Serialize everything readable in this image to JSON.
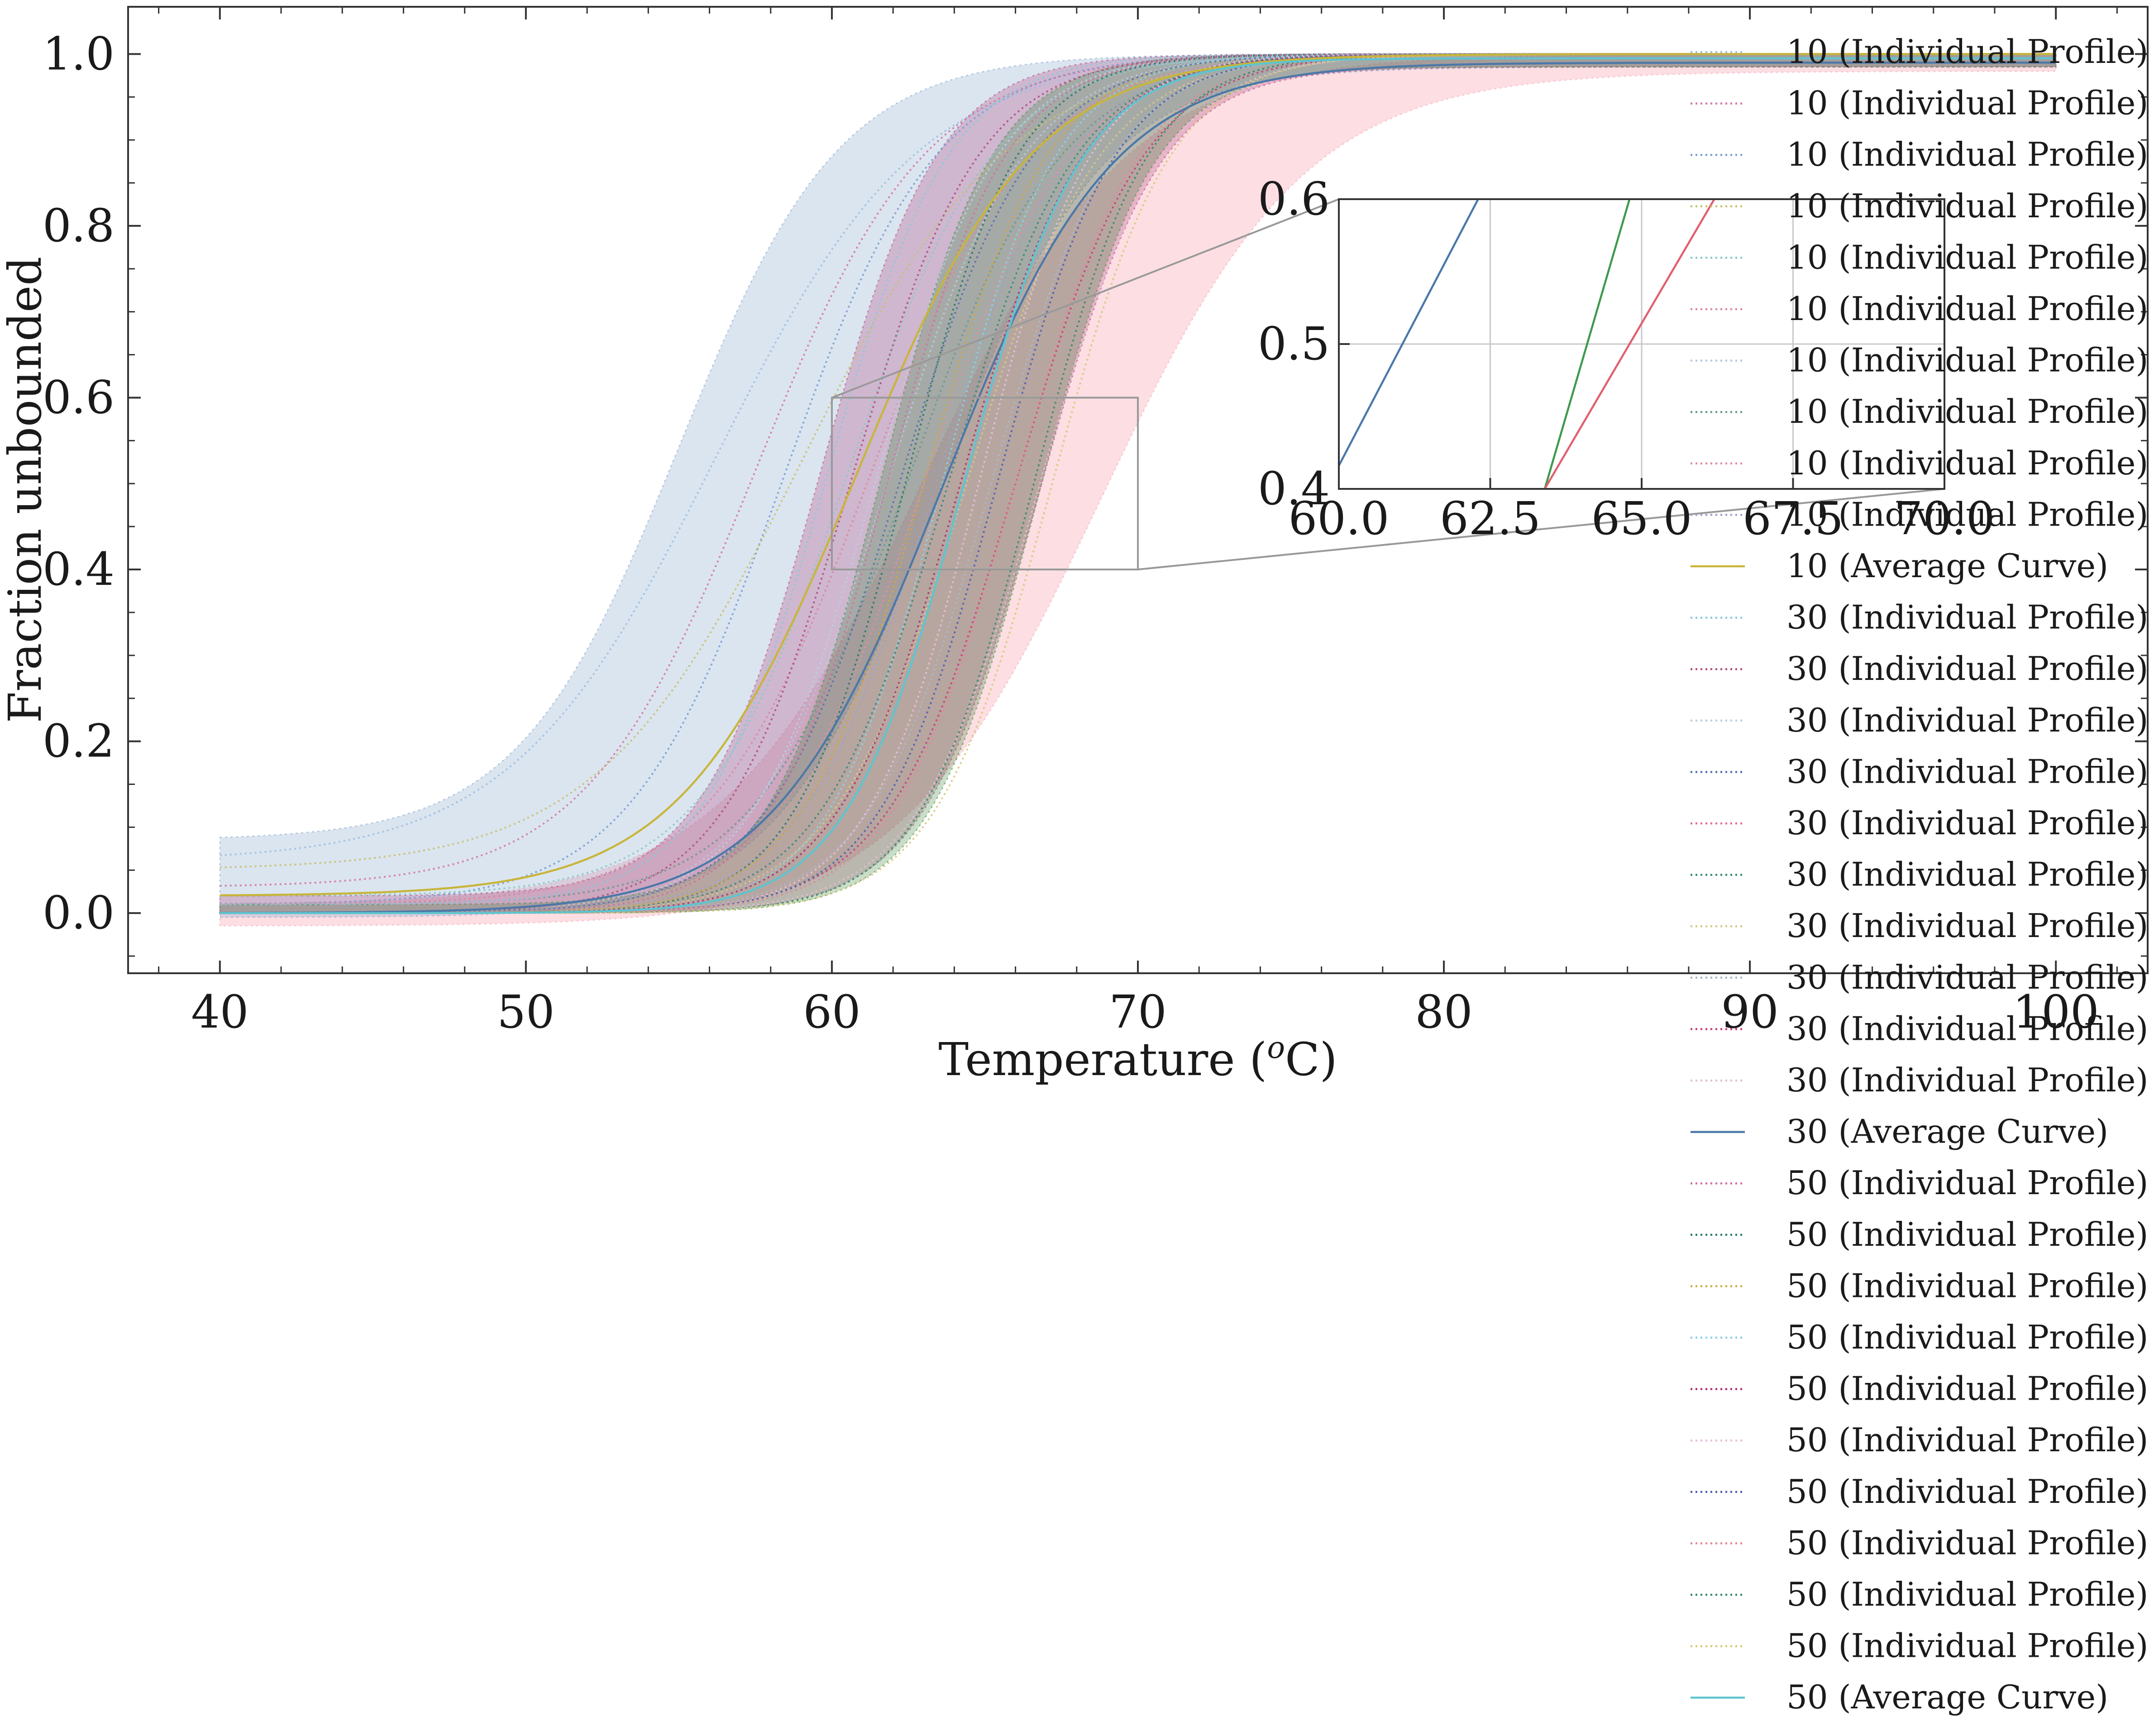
{
  "chart_data": {
    "type": "line",
    "xlabel": "Temperature (",
    "xlabel_sup": "o",
    "xlabel_suffix": "C)",
    "ylabel": "Fraction unbounded",
    "xlim": [
      37,
      103
    ],
    "ylim": [
      -0.07,
      1.055
    ],
    "xticks": [
      40,
      50,
      60,
      70,
      80,
      90,
      100
    ],
    "yticks": [
      0.0,
      0.2,
      0.4,
      0.6,
      0.8,
      1.0
    ],
    "xtick_labels": [
      "40",
      "50",
      "60",
      "70",
      "80",
      "90",
      "100"
    ],
    "ytick_labels": [
      "0.0",
      "0.2",
      "0.4",
      "0.6",
      "0.8",
      "1.0"
    ],
    "groups": [
      {
        "name": "10",
        "color": "#c8b53a",
        "band_color": "#7fa2c8",
        "band_min_tm": 55.0,
        "band_max_tm": 63.5,
        "band_k": 0.38,
        "band_lower_base": -0.005,
        "band_upper_base": 0.085,
        "average": {
          "label": "10 (Average Curve)",
          "tm": 60.8,
          "k": 0.35,
          "base": 0.02,
          "top": 1.0
        },
        "individual_label": "10 (Individual Profile)",
        "profiles": [
          {
            "tm": 56.2,
            "k": 0.3,
            "base": 0.06,
            "color": "#9fc0e0"
          },
          {
            "tm": 57.5,
            "k": 0.36,
            "base": 0.03,
            "color": "#d37aa6"
          },
          {
            "tm": 58.4,
            "k": 0.4,
            "base": 0.01,
            "color": "#7aa0d0"
          },
          {
            "tm": 59.0,
            "k": 0.3,
            "base": 0.05,
            "color": "#c8c070"
          },
          {
            "tm": 60.5,
            "k": 0.42,
            "base": 0.02,
            "color": "#8cc8c8"
          },
          {
            "tm": 61.2,
            "k": 0.38,
            "base": 0.01,
            "color": "#d88aa0"
          },
          {
            "tm": 61.8,
            "k": 0.45,
            "base": 0.0,
            "color": "#b8c8e0"
          },
          {
            "tm": 62.5,
            "k": 0.4,
            "base": 0.01,
            "color": "#6a9a8a"
          },
          {
            "tm": 63.0,
            "k": 0.42,
            "base": 0.0,
            "color": "#e090a0"
          },
          {
            "tm": 63.4,
            "k": 0.46,
            "base": 0.0,
            "color": "#a0a0c8"
          }
        ]
      },
      {
        "name": "30",
        "color": "#4a78a8",
        "band_color": "#b0417a",
        "band_min_tm": 59.6,
        "band_max_tm": 66.8,
        "band_k": 0.52,
        "band_lower_base": 0.0,
        "band_upper_base": 0.02,
        "average": {
          "label": "30 (Average Curve)",
          "tm": 63.6,
          "k": 0.36,
          "base": 0.0,
          "top": 0.99
        },
        "individual_label": "30 (Individual Profile)",
        "profiles": [
          {
            "tm": 59.8,
            "k": 0.5,
            "base": 0.01,
            "color": "#8cc8d8"
          },
          {
            "tm": 60.6,
            "k": 0.48,
            "base": 0.0,
            "color": "#b05080"
          },
          {
            "tm": 61.4,
            "k": 0.5,
            "base": 0.0,
            "color": "#b8d0e0"
          },
          {
            "tm": 62.2,
            "k": 0.46,
            "base": 0.0,
            "color": "#5a70b0"
          },
          {
            "tm": 63.0,
            "k": 0.5,
            "base": 0.0,
            "color": "#e07090"
          },
          {
            "tm": 63.8,
            "k": 0.48,
            "base": 0.0,
            "color": "#3a8a7a"
          },
          {
            "tm": 64.4,
            "k": 0.46,
            "base": 0.0,
            "color": "#d8c888"
          },
          {
            "tm": 65.2,
            "k": 0.5,
            "base": 0.0,
            "color": "#a8b8c8"
          },
          {
            "tm": 66.0,
            "k": 0.48,
            "base": 0.0,
            "color": "#c8407a"
          },
          {
            "tm": 66.8,
            "k": 0.5,
            "base": 0.0,
            "color": "#e0c0d0"
          }
        ]
      },
      {
        "name": "50",
        "color": "#5ec4d0",
        "band_color": "#3d8a3d",
        "band_min_tm": 61.6,
        "band_max_tm": 66.8,
        "band_k": 0.55,
        "band_lower_base": 0.0,
        "band_upper_base": 0.01,
        "average": {
          "label": "50 (Average Curve)",
          "tm": 64.3,
          "k": 0.52,
          "base": 0.0,
          "top": 0.995
        },
        "individual_label": "50 (Individual Profile)",
        "profiles": [
          {
            "tm": 61.8,
            "k": 0.52,
            "base": 0.0,
            "color": "#d070a0"
          },
          {
            "tm": 62.4,
            "k": 0.55,
            "base": 0.0,
            "color": "#2a7a6a"
          },
          {
            "tm": 63.0,
            "k": 0.5,
            "base": 0.0,
            "color": "#c8b040"
          },
          {
            "tm": 63.6,
            "k": 0.54,
            "base": 0.0,
            "color": "#8cd0e8"
          },
          {
            "tm": 64.2,
            "k": 0.5,
            "base": 0.0,
            "color": "#b03070"
          },
          {
            "tm": 64.8,
            "k": 0.55,
            "base": 0.0,
            "color": "#e8c0d8"
          },
          {
            "tm": 65.4,
            "k": 0.52,
            "base": 0.0,
            "color": "#5060b0"
          },
          {
            "tm": 66.0,
            "k": 0.5,
            "base": 0.0,
            "color": "#e08898"
          },
          {
            "tm": 66.6,
            "k": 0.54,
            "base": 0.0,
            "color": "#3a8a6a"
          },
          {
            "tm": 67.2,
            "k": 0.52,
            "base": 0.0,
            "color": "#d8c878"
          }
        ]
      }
    ],
    "extra_band": {
      "color": "#f5a0b0",
      "lower_tm": 68.8,
      "upper_tm": 63.0,
      "k": 0.3,
      "lower_base": -0.015,
      "upper_base": 0.01,
      "top_lower": 0.98
    },
    "inset": {
      "xlim": [
        60.0,
        70.0
      ],
      "ylim": [
        0.4,
        0.6
      ],
      "xticks": [
        60.0,
        62.5,
        65.0,
        67.5,
        70.0
      ],
      "yticks": [
        0.4,
        0.5,
        0.6
      ],
      "xtick_labels": [
        "60.0",
        "62.5",
        "65.0",
        "67.5",
        "70.0"
      ],
      "ytick_labels": [
        "0.4",
        "0.5",
        "0.6"
      ],
      "grid": true,
      "lines": [
        {
          "color": "#4a78a8",
          "x": [
            59.8,
            62.3
          ]
        },
        {
          "color": "#3d9a4d",
          "x": [
            63.4,
            64.8
          ]
        },
        {
          "color": "#e06070",
          "x": [
            63.4,
            66.2
          ]
        }
      ]
    },
    "legend": {
      "placement": "right",
      "entries": [
        {
          "label": "10 (Individual Profile)",
          "style": "dotted",
          "color": "#9fc0e0"
        },
        {
          "label": "10 (Individual Profile)",
          "style": "dotted",
          "color": "#d37aa6"
        },
        {
          "label": "10 (Individual Profile)",
          "style": "dotted",
          "color": "#7aa0d0"
        },
        {
          "label": "10 (Individual Profile)",
          "style": "dotted",
          "color": "#c8c070"
        },
        {
          "label": "10 (Individual Profile)",
          "style": "dotted",
          "color": "#8cc8c8"
        },
        {
          "label": "10 (Individual Profile)",
          "style": "dotted",
          "color": "#d88aa0"
        },
        {
          "label": "10 (Individual Profile)",
          "style": "dotted",
          "color": "#b8c8e0"
        },
        {
          "label": "10 (Individual Profile)",
          "style": "dotted",
          "color": "#6a9a8a"
        },
        {
          "label": "10 (Individual Profile)",
          "style": "dotted",
          "color": "#e090a0"
        },
        {
          "label": "10 (Individual Profile)",
          "style": "dotted",
          "color": "#a0a0c8"
        },
        {
          "label": "10 (Average Curve)",
          "style": "solid",
          "color": "#c8b53a"
        },
        {
          "label": "30 (Individual Profile)",
          "style": "dotted",
          "color": "#8cc8d8"
        },
        {
          "label": "30 (Individual Profile)",
          "style": "dotted",
          "color": "#b05080"
        },
        {
          "label": "30 (Individual Profile)",
          "style": "dotted",
          "color": "#b8d0e0"
        },
        {
          "label": "30 (Individual Profile)",
          "style": "dotted",
          "color": "#5a70b0"
        },
        {
          "label": "30 (Individual Profile)",
          "style": "dotted",
          "color": "#e07090"
        },
        {
          "label": "30 (Individual Profile)",
          "style": "dotted",
          "color": "#3a8a7a"
        },
        {
          "label": "30 (Individual Profile)",
          "style": "dotted",
          "color": "#d8c888"
        },
        {
          "label": "30 (Individual Profile)",
          "style": "dotted",
          "color": "#a8b8c8"
        },
        {
          "label": "30 (Individual Profile)",
          "style": "dotted",
          "color": "#c8407a"
        },
        {
          "label": "30 (Individual Profile)",
          "style": "dotted",
          "color": "#e0c0d0"
        },
        {
          "label": "30 (Average Curve)",
          "style": "solid",
          "color": "#4a78a8"
        },
        {
          "label": "50 (Individual Profile)",
          "style": "dotted",
          "color": "#d070a0"
        },
        {
          "label": "50 (Individual Profile)",
          "style": "dotted",
          "color": "#2a7a6a"
        },
        {
          "label": "50 (Individual Profile)",
          "style": "dotted",
          "color": "#c8b040"
        },
        {
          "label": "50 (Individual Profile)",
          "style": "dotted",
          "color": "#8cd0e8"
        },
        {
          "label": "50 (Individual Profile)",
          "style": "dotted",
          "color": "#b03070"
        },
        {
          "label": "50 (Individual Profile)",
          "style": "dotted",
          "color": "#e8c0d8"
        },
        {
          "label": "50 (Individual Profile)",
          "style": "dotted",
          "color": "#5060b0"
        },
        {
          "label": "50 (Individual Profile)",
          "style": "dotted",
          "color": "#e08898"
        },
        {
          "label": "50 (Individual Profile)",
          "style": "dotted",
          "color": "#3a8a6a"
        },
        {
          "label": "50 (Individual Profile)",
          "style": "dotted",
          "color": "#d8c878"
        },
        {
          "label": "50 (Average Curve)",
          "style": "solid",
          "color": "#5ec4d0"
        }
      ]
    }
  }
}
